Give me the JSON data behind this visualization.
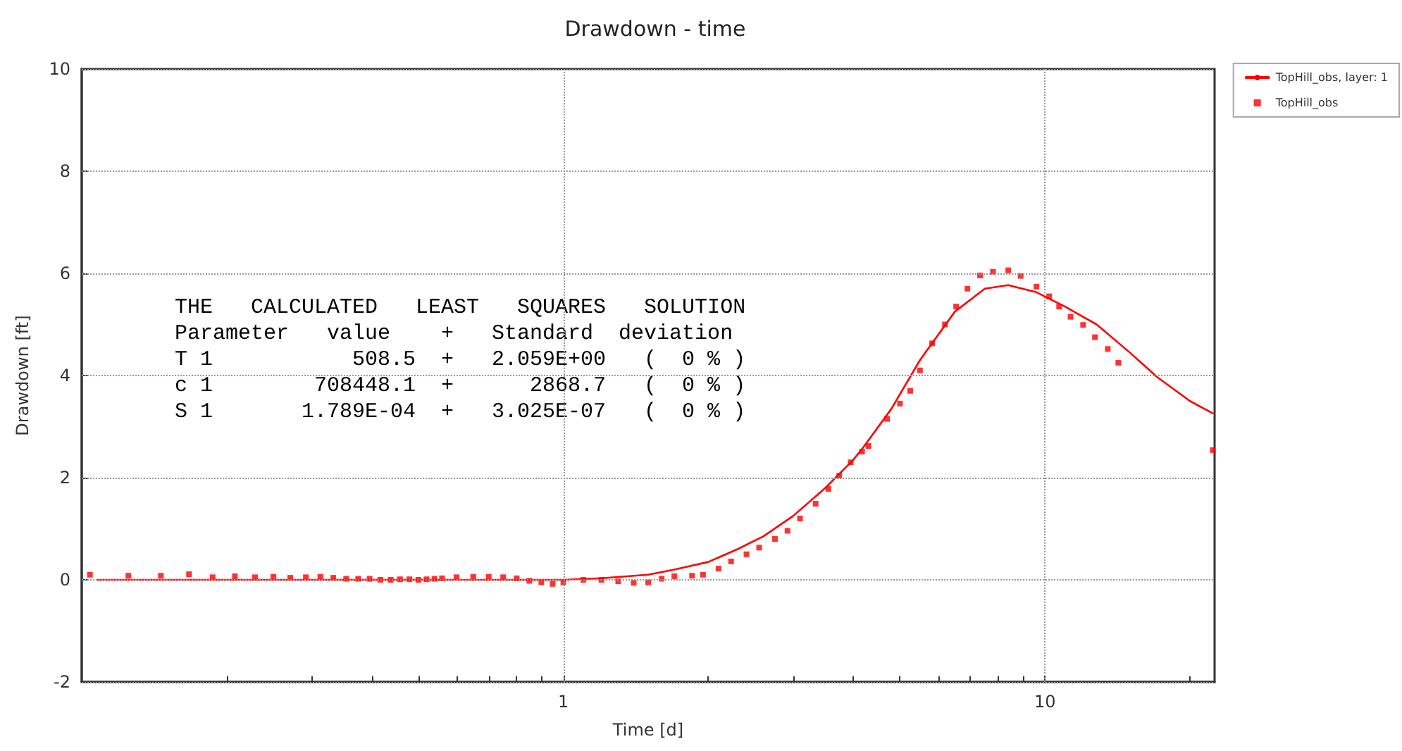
{
  "chart_data": {
    "type": "line",
    "title": "Drawdown - time",
    "xlabel": "Time [d]",
    "ylabel": "Drawdown [ft]",
    "log": "x",
    "xlim": [
      0.1,
      22.5
    ],
    "ylim": [
      -2,
      10
    ],
    "xticks": [
      {
        "value": 0.2,
        "label": null
      },
      {
        "value": 0.3,
        "label": null
      },
      {
        "value": 0.4,
        "label": null
      },
      {
        "value": 0.5,
        "label": null
      },
      {
        "value": 0.6,
        "label": null
      },
      {
        "value": 0.7,
        "label": null
      },
      {
        "value": 0.8,
        "label": null
      },
      {
        "value": 0.9,
        "label": null
      },
      1,
      {
        "value": 2,
        "label": null
      },
      {
        "value": 3,
        "label": null
      },
      {
        "value": 4,
        "label": null
      },
      {
        "value": 5,
        "label": null
      },
      {
        "value": 6,
        "label": null
      },
      {
        "value": 7,
        "label": null
      },
      {
        "value": 8,
        "label": null
      },
      {
        "value": 9,
        "label": null
      },
      10,
      {
        "value": 20,
        "label": null
      }
    ],
    "yticks": [
      -2,
      0,
      2,
      4,
      6,
      8,
      10
    ],
    "grid": true,
    "legend": "top right",
    "annotations": [
      "THE   CALCULATED   LEAST   SQUARES   SOLUTION",
      "Parameter   value    +   Standard  deviation",
      "T 1           508.5  +   2.059E+00   (  0 % )",
      "c 1        708448.1  +      2868.7   (  0 % )",
      "S 1       1.789E-04  +   3.025E-07   (  0 % )"
    ],
    "series": [
      {
        "name": "TopHill_obs, layer: 1",
        "type": "line",
        "color": "#ff0000",
        "line_style": "solid",
        "marker": "none",
        "x": [
          0.108,
          0.2,
          0.4,
          0.7,
          1.0,
          1.2,
          1.5,
          1.7,
          2.0,
          2.3,
          2.6,
          3.0,
          3.5,
          4.0,
          4.2,
          4.8,
          5.5,
          6.5,
          7.5,
          8.39,
          9.6,
          11,
          12.8,
          15,
          17.1,
          20,
          22.3
        ],
        "values": [
          0,
          0,
          0,
          0,
          0,
          0.03,
          0.1,
          0.2,
          0.35,
          0.6,
          0.85,
          1.25,
          1.8,
          2.35,
          2.6,
          3.35,
          4.3,
          5.25,
          5.7,
          5.77,
          5.63,
          5.35,
          5.0,
          4.45,
          3.97,
          3.5,
          3.26
        ]
      },
      {
        "name": "TopHill_obs",
        "type": "scatter",
        "color": "#ff0000",
        "marker": "square",
        "x": [
          0.104,
          0.125,
          0.146,
          0.167,
          0.187,
          0.208,
          0.229,
          0.25,
          0.271,
          0.292,
          0.313,
          0.333,
          0.354,
          0.375,
          0.396,
          0.417,
          0.438,
          0.458,
          0.479,
          0.5,
          0.52,
          0.54,
          0.56,
          0.6,
          0.65,
          0.7,
          0.75,
          0.8,
          0.85,
          0.9,
          0.95,
          1.0,
          1.1,
          1.2,
          1.3,
          1.4,
          1.5,
          1.6,
          1.7,
          1.85,
          1.95,
          2.1,
          2.23,
          2.4,
          2.55,
          2.75,
          2.92,
          3.1,
          3.34,
          3.55,
          3.74,
          3.95,
          4.17,
          4.3,
          4.7,
          5.0,
          5.25,
          5.5,
          5.83,
          6.2,
          6.54,
          6.9,
          7.33,
          7.8,
          8.39,
          8.9,
          9.6,
          10.2,
          10.7,
          11.3,
          12.0,
          12.7,
          13.5,
          14.2,
          22.3
        ],
        "values": [
          0.1,
          0.08,
          0.08,
          0.11,
          0.05,
          0.07,
          0.05,
          0.06,
          0.04,
          0.05,
          0.06,
          0.04,
          0.02,
          0.02,
          0.02,
          0,
          0,
          0.01,
          0.01,
          0,
          0.01,
          0.02,
          0.03,
          0.05,
          0.06,
          0.06,
          0.05,
          0.03,
          -0.02,
          -0.05,
          -0.08,
          -0.05,
          0,
          0,
          -0.03,
          -0.06,
          -0.05,
          0.02,
          0.07,
          0.08,
          0.1,
          0.22,
          0.36,
          0.5,
          0.63,
          0.8,
          0.96,
          1.2,
          1.49,
          1.78,
          2.04,
          2.3,
          2.51,
          2.62,
          3.15,
          3.45,
          3.7,
          4.1,
          4.63,
          5.0,
          5.35,
          5.7,
          5.96,
          6.03,
          6.06,
          5.95,
          5.74,
          5.55,
          5.35,
          5.15,
          4.99,
          4.75,
          4.52,
          4.25,
          2.54
        ]
      }
    ]
  }
}
